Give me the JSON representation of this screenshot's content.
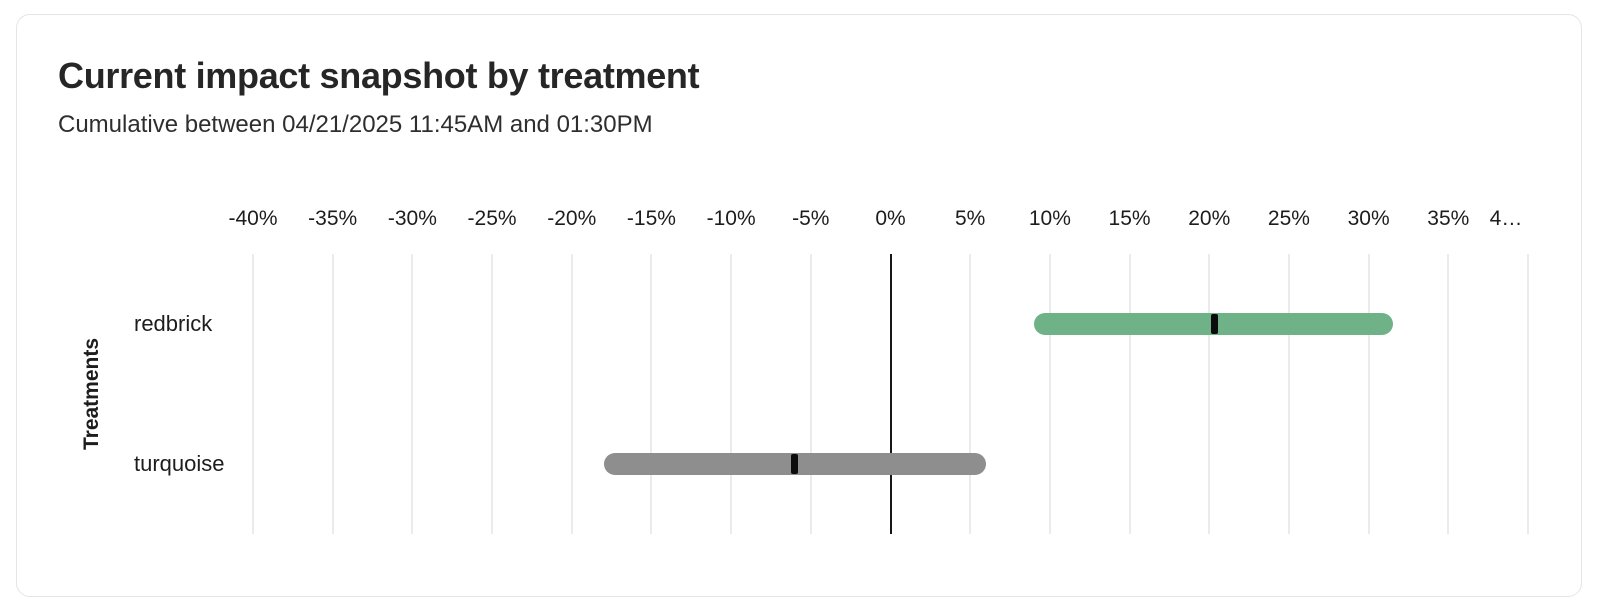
{
  "header": {
    "title": "Current impact snapshot by treatment",
    "subtitle": "Cumulative between 04/21/2025 11:45AM and 01:30PM"
  },
  "chart_data": {
    "type": "bar",
    "subtype": "horizontal-range-bar",
    "title": "Current impact snapshot by treatment",
    "xlabel": "",
    "ylabel": "Treatments",
    "xlim": [
      -40,
      40
    ],
    "grid": "vertical",
    "zero_line": true,
    "legend_position": "none",
    "x_ticks": {
      "values": [
        -40,
        -35,
        -30,
        -25,
        -20,
        -15,
        -10,
        -5,
        0,
        5,
        10,
        15,
        20,
        25,
        30,
        35,
        40
      ],
      "labels": [
        "-40%",
        "-35%",
        "-30%",
        "-25%",
        "-20%",
        "-15%",
        "-10%",
        "-5%",
        "0%",
        "5%",
        "10%",
        "15%",
        "20%",
        "25%",
        "30%",
        "35%",
        "4…"
      ]
    },
    "categories": [
      "redbrick",
      "turquoise"
    ],
    "series": [
      {
        "name": "redbrick",
        "low_pct": 9,
        "mid_pct": 20.3,
        "high_pct": 31.5,
        "color": "#6fb287"
      },
      {
        "name": "turquoise",
        "low_pct": -18,
        "mid_pct": -6,
        "high_pct": 6,
        "color": "#8e8e8e"
      }
    ],
    "marker_color": "#0c0c0c"
  },
  "colors": {
    "card_border": "#e5e5e5",
    "grid_line": "#ebebeb",
    "zero_line": "#161616",
    "title_text": "#262626",
    "subtitle_text": "#2e2e2e",
    "axis_text": "#1d1d1d"
  }
}
